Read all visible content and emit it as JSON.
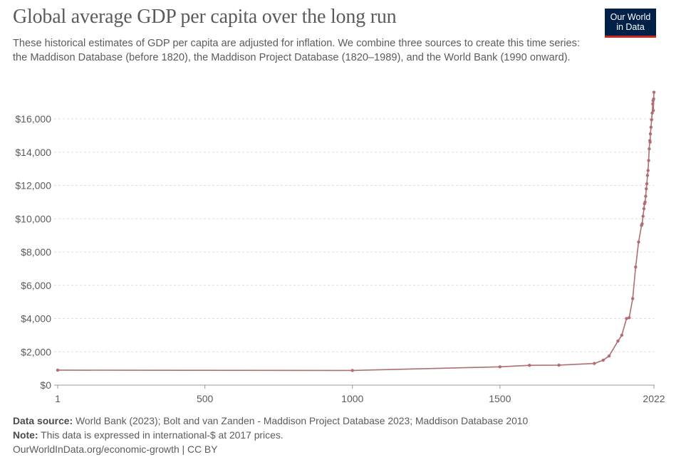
{
  "header": {
    "title": "Global average GDP per capita over the long run",
    "subtitle": "These historical estimates of GDP per capita are adjusted for inflation. We combine three sources to create this time series: the Maddison Database (before 1820), the Maddison Project Database (1820–1989), and the World Bank (1990 onward).",
    "logo_line1": "Our World",
    "logo_line2": "in Data"
  },
  "footer": {
    "source_label": "Data source:",
    "source_text": "World Bank (2023); Bolt and van Zanden - Maddison Project Database 2023; Maddison Database 2010",
    "note_label": "Note:",
    "note_text": "This data is expressed in international-$ at 2017 prices.",
    "link_text": "OurWorldInData.org/economic-growth | CC BY"
  },
  "colors": {
    "line": "#b16e72",
    "grid": "#dddddd",
    "axis": "#999999",
    "text": "#5b5b5b",
    "logo_bg": "#002147",
    "logo_accent": "#ce261e"
  },
  "chart_data": {
    "type": "line",
    "title": "Global average GDP per capita over the long run",
    "xlabel": "",
    "ylabel": "",
    "xlim": [
      1,
      2022
    ],
    "ylim": [
      0,
      17500
    ],
    "x_ticks": [
      1,
      500,
      1000,
      1500,
      2022
    ],
    "x_tick_labels": [
      "1",
      "500",
      "1000",
      "1500",
      "2022"
    ],
    "y_ticks": [
      0,
      2000,
      4000,
      6000,
      8000,
      10000,
      12000,
      14000,
      16000
    ],
    "y_tick_labels": [
      "$0",
      "$2,000",
      "$4,000",
      "$6,000",
      "$8,000",
      "$10,000",
      "$12,000",
      "$14,000",
      "$16,000"
    ],
    "grid": "horizontal dashed",
    "legend": "none",
    "series": [
      {
        "points": [
          [
            1,
            900
          ],
          [
            1000,
            880
          ],
          [
            1500,
            1100
          ],
          [
            1600,
            1190
          ],
          [
            1700,
            1200
          ],
          [
            1820,
            1300
          ],
          [
            1850,
            1500
          ],
          [
            1870,
            1750
          ],
          [
            1900,
            2650
          ],
          [
            1913,
            3000
          ],
          [
            1929,
            4000
          ],
          [
            1938,
            4050
          ],
          [
            1950,
            5200
          ],
          [
            1960,
            7100
          ],
          [
            1970,
            8600
          ],
          [
            1980,
            9600
          ],
          [
            1982,
            9700
          ],
          [
            1985,
            10150
          ],
          [
            1988,
            10600
          ],
          [
            1990,
            10900
          ],
          [
            1992,
            11000
          ],
          [
            1994,
            11350
          ],
          [
            1996,
            11800
          ],
          [
            1998,
            12100
          ],
          [
            2000,
            12600
          ],
          [
            2002,
            12900
          ],
          [
            2004,
            13500
          ],
          [
            2006,
            14200
          ],
          [
            2008,
            14700
          ],
          [
            2009,
            14600
          ],
          [
            2010,
            15100
          ],
          [
            2012,
            15500
          ],
          [
            2014,
            15950
          ],
          [
            2016,
            16350
          ],
          [
            2018,
            16900
          ],
          [
            2019,
            17100
          ],
          [
            2020,
            16500
          ],
          [
            2021,
            17200
          ],
          [
            2022,
            17600
          ]
        ]
      }
    ]
  }
}
